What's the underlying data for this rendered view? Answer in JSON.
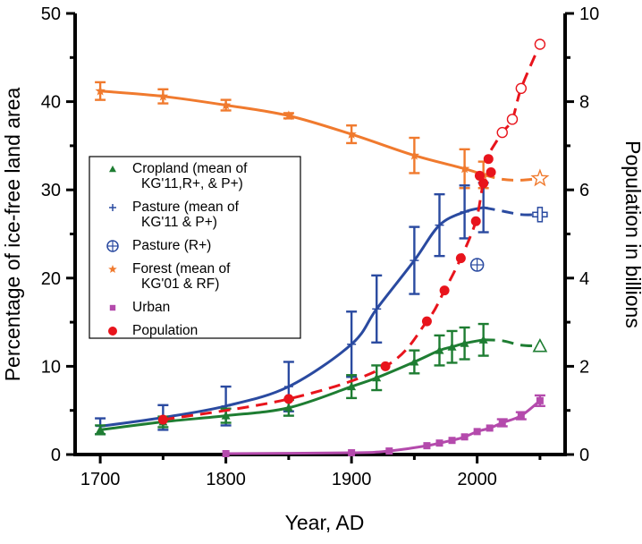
{
  "chart_data": {
    "type": "line",
    "xlabel": "Year, AD",
    "ylabel_left": "Percentage of ice-free land area",
    "ylabel_right": "Population in billions",
    "xlim": [
      1680,
      2070
    ],
    "ylim_left": [
      0,
      50
    ],
    "ylim_right": [
      0,
      10
    ],
    "x_ticks": [
      1700,
      1800,
      1900,
      2000
    ],
    "y_ticks_left": [
      0,
      10,
      20,
      30,
      40,
      50
    ],
    "y_ticks_right": [
      0,
      2,
      4,
      6,
      8,
      10
    ],
    "grid": false,
    "legend_position": "center-left",
    "series": [
      {
        "name": "Cropland (mean of\nKG'11,R+, & P+)",
        "color": "#1e7d32",
        "marker": "triangle",
        "axis": "left",
        "style": "solid",
        "x": [
          1700,
          1750,
          1800,
          1850,
          1900,
          1920,
          1950,
          1970,
          1980,
          1990,
          2005
        ],
        "y": [
          2.8,
          3.7,
          4.4,
          5.3,
          7.7,
          8.7,
          10.5,
          11.8,
          12.2,
          12.6,
          13.0
        ],
        "err": [
          0.5,
          0.6,
          0.8,
          0.9,
          1.3,
          1.4,
          1.3,
          1.7,
          1.8,
          1.8,
          1.8
        ],
        "projection": {
          "x": [
            2005,
            2020,
            2035,
            2050
          ],
          "y": [
            13.0,
            12.9,
            12.4,
            12.3
          ]
        },
        "projection_marker": {
          "x": 2050,
          "y": 12.3
        }
      },
      {
        "name": "Pasture (mean of\nKG'11 & P+)",
        "color": "#2a4aa0",
        "marker": "plus",
        "axis": "left",
        "style": "solid",
        "x": [
          1700,
          1750,
          1800,
          1850,
          1900,
          1920,
          1950,
          1970,
          1990,
          2005
        ],
        "y": [
          3.2,
          4.2,
          5.5,
          7.7,
          12.5,
          16.5,
          22.0,
          26.0,
          27.5,
          28.0
        ],
        "err": [
          0.9,
          1.4,
          2.2,
          2.8,
          3.7,
          3.8,
          3.8,
          3.5,
          3.0,
          2.8
        ],
        "projection": {
          "x": [
            2005,
            2020,
            2035,
            2050
          ],
          "y": [
            28.0,
            27.6,
            27.2,
            27.2
          ]
        },
        "projection_marker": {
          "x": 2050,
          "y": 27.2
        }
      },
      {
        "name": "Pasture (R+)",
        "color": "#2a4aa0",
        "marker": "circle-plus",
        "axis": "left",
        "style": "point",
        "x": [
          2000
        ],
        "y": [
          21.5
        ]
      },
      {
        "name": "Forest (mean of\nKG'01 & RF)",
        "color": "#f07a2e",
        "marker": "star",
        "axis": "left",
        "style": "solid",
        "x": [
          1700,
          1750,
          1800,
          1850,
          1900,
          1950,
          1990,
          2005
        ],
        "y": [
          41.2,
          40.6,
          39.6,
          38.4,
          36.3,
          33.9,
          32.4,
          31.7
        ],
        "err": [
          1.0,
          0.8,
          0.6,
          0.3,
          1.0,
          2.0,
          2.2,
          1.5
        ],
        "projection": {
          "x": [
            2005,
            2020,
            2035,
            2050
          ],
          "y": [
            31.7,
            31.2,
            31.1,
            31.3
          ]
        },
        "projection_marker": {
          "x": 2050,
          "y": 31.3
        }
      },
      {
        "name": "Urban",
        "color": "#b44aac",
        "marker": "square",
        "axis": "left",
        "style": "solid",
        "x": [
          1800,
          1900,
          1930,
          1960,
          1970,
          1980,
          1990,
          2000,
          2010,
          2020,
          2035,
          2050
        ],
        "y": [
          0.1,
          0.2,
          0.4,
          1.0,
          1.3,
          1.6,
          2.0,
          2.6,
          3.0,
          3.6,
          4.4,
          6.1
        ],
        "err": [
          0,
          0,
          0,
          0,
          0,
          0,
          0,
          0,
          0,
          0.4,
          0.4,
          0.6
        ]
      },
      {
        "name": "Population",
        "color": "#e8141c",
        "marker": "filled-circle",
        "axis": "right",
        "style": "dashed",
        "x": [
          1750,
          1850,
          1927,
          1960,
          1974,
          1987,
          1999,
          2005,
          2011
        ],
        "y": [
          0.79,
          1.26,
          2.0,
          3.02,
          3.72,
          4.45,
          5.29,
          6.15,
          6.4
        ],
        "projection": {
          "x": [
            2011,
            2020,
            2028,
            2035,
            2050
          ],
          "y": [
            6.9,
            7.3,
            7.6,
            8.3,
            9.3
          ]
        },
        "projection_markers": {
          "x": [
            2020,
            2028,
            2035,
            2050
          ],
          "y": [
            7.3,
            7.6,
            8.3,
            9.3
          ]
        }
      }
    ],
    "extra_points": [
      {
        "x": 2002,
        "y": 6.32,
        "axis": "right",
        "color": "#e8141c"
      },
      {
        "x": 2009,
        "y": 6.7,
        "axis": "right",
        "color": "#e8141c"
      }
    ]
  }
}
